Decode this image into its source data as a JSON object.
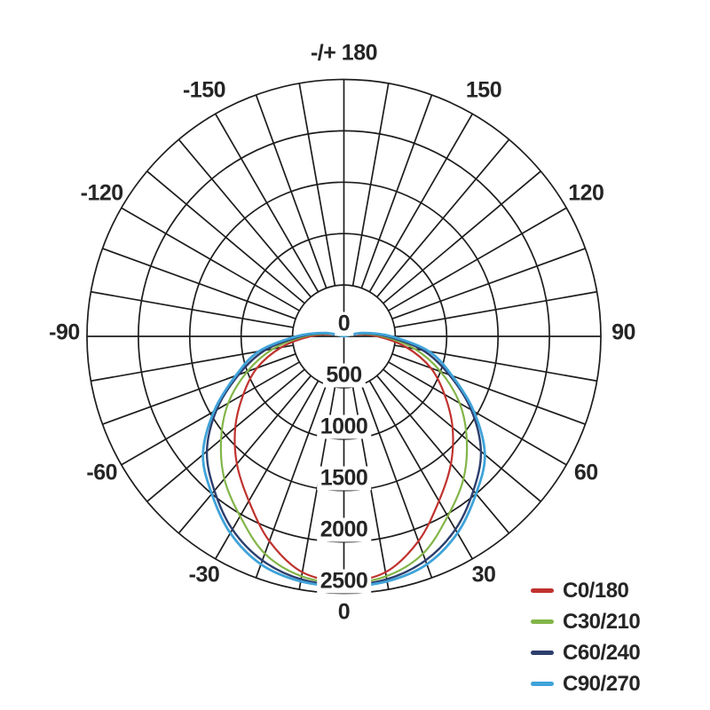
{
  "page": {
    "background_color": "#ffffff",
    "title": ""
  },
  "chart_data": {
    "type": "line",
    "subtype": "polar-photometric",
    "title": "",
    "units_implied": "cd",
    "grid_color": "#1d1d1d",
    "text_color": "#252525",
    "grid": "on",
    "legend_position": "bottom-right",
    "r_axis": {
      "min": 0,
      "max": 2500,
      "ticks": [
        0,
        500,
        1000,
        1500,
        2000,
        2500
      ],
      "tick_labels": [
        "0",
        "500",
        "1000",
        "1500",
        "2000",
        "2500"
      ]
    },
    "angle_axis": {
      "step_deg": 10,
      "zero_direction": "down",
      "labels": [
        {
          "deg": 180,
          "text": "-/+ 180"
        },
        {
          "deg": 150,
          "text": "150"
        },
        {
          "deg": 120,
          "text": "120"
        },
        {
          "deg": 90,
          "text": "90"
        },
        {
          "deg": 60,
          "text": "60"
        },
        {
          "deg": 30,
          "text": "30"
        },
        {
          "deg": 0,
          "text": "0"
        },
        {
          "deg": -30,
          "text": "-30"
        },
        {
          "deg": -60,
          "text": "-60"
        },
        {
          "deg": -90,
          "text": "-90"
        },
        {
          "deg": -120,
          "text": "-120"
        },
        {
          "deg": -150,
          "text": "-150"
        }
      ]
    },
    "angles_deg": [
      -110,
      -100,
      -90,
      -80,
      -70,
      -60,
      -50,
      -40,
      -30,
      -20,
      -10,
      0,
      10,
      20,
      30,
      40,
      50,
      60,
      70,
      80,
      90,
      100,
      110
    ],
    "series": [
      {
        "name": "C0/180",
        "color": "#c0322e",
        "stroke_width": 2.2,
        "values": [
          0,
          120,
          330,
          620,
          900,
          1130,
          1380,
          1620,
          1850,
          2120,
          2330,
          2380,
          2330,
          2120,
          1850,
          1620,
          1380,
          1130,
          900,
          620,
          330,
          120,
          0
        ]
      },
      {
        "name": "C30/210",
        "color": "#82b548",
        "stroke_width": 2.2,
        "values": [
          0,
          150,
          380,
          700,
          1000,
          1300,
          1560,
          1810,
          2020,
          2250,
          2370,
          2400,
          2370,
          2250,
          2020,
          1810,
          1560,
          1300,
          1000,
          700,
          380,
          150,
          0
        ]
      },
      {
        "name": "C60/240",
        "color": "#2c3e6d",
        "stroke_width": 2.4,
        "values": [
          0,
          170,
          420,
          780,
          1090,
          1430,
          1740,
          1960,
          2170,
          2320,
          2400,
          2420,
          2400,
          2320,
          2170,
          1960,
          1740,
          1430,
          1090,
          780,
          420,
          170,
          0
        ]
      },
      {
        "name": "C90/270",
        "color": "#3fa3d9",
        "stroke_width": 2.8,
        "values": [
          0,
          190,
          460,
          840,
          1120,
          1460,
          1790,
          2000,
          2210,
          2360,
          2420,
          2430,
          2420,
          2360,
          2210,
          2000,
          1790,
          1460,
          1120,
          840,
          460,
          190,
          0
        ]
      }
    ]
  }
}
